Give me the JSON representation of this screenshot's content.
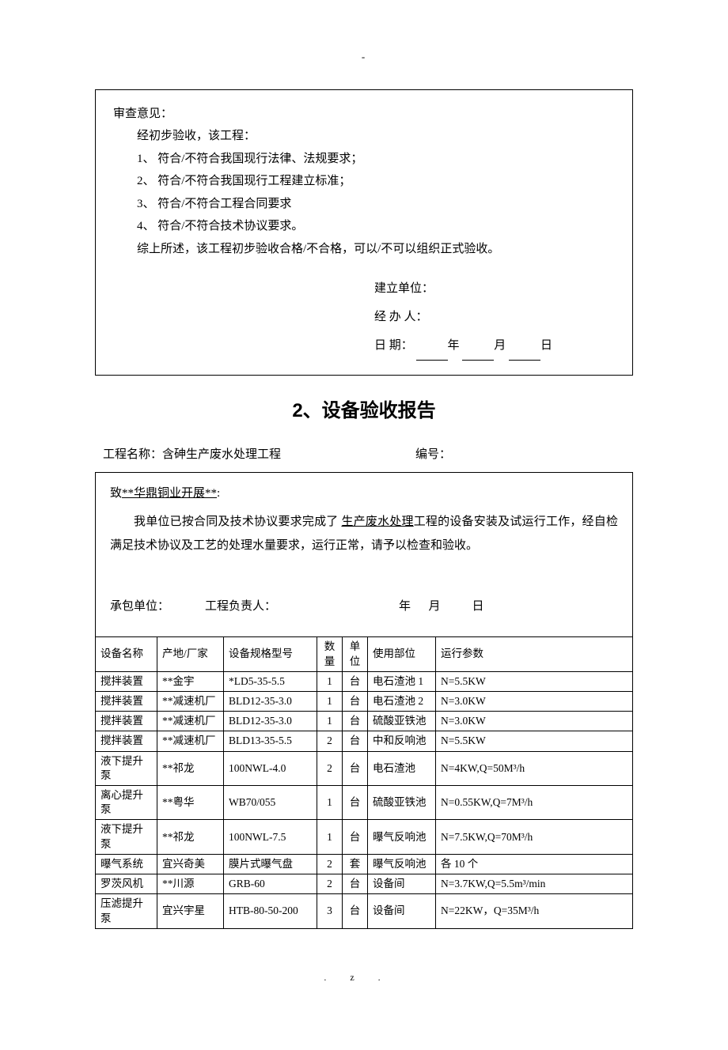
{
  "topDash": "-",
  "reviewBox": {
    "title": "审查意见：",
    "intro": "经初步验收，该工程：",
    "items": [
      "1、 符合/不符合我国现行法律、法规要求；",
      "2、 符合/不符合我国现行工程建立标准；",
      "3、 符合/不符合工程合同要求",
      "4、 符合/不符合技术协议要求。"
    ],
    "summary": "综上所述，该工程初步验收合格/不合格，可以/不可以组织正式验收。",
    "sign": {
      "unitLabel": "建立单位：",
      "handlerLabel": "经  办  人：",
      "dateLabel": "日          期：",
      "year": "年",
      "month": "月",
      "day": "日"
    }
  },
  "sectionHeading": "2、设备验收报告",
  "meta": {
    "projectLabel": "工程名称：",
    "projectName": "含砷生产废水处理工程",
    "codeLabel": "编号："
  },
  "letter": {
    "toPrefix": "致",
    "toName": "**华鼎铜业开展**",
    "toSuffix": ":",
    "bodyPart1": "我单位已按合同及技术协议要求完成了 ",
    "bodyUnderlined": "生产废水处理",
    "bodyPart2": "工程的设备安装及试运行工作，经自检满足技术协议及工艺的处理水量要求，运行正常，请予以检查和验收。",
    "signer": {
      "contractor": "承包单位：",
      "leader": "工程负责人：",
      "year": "年",
      "month": "月",
      "day": "日"
    }
  },
  "table": {
    "headers": {
      "name": "设备名称",
      "mfr": "产地/厂家",
      "model": "设备规格型号",
      "qty": "数量",
      "unit": "单位",
      "loc": "使用部位",
      "param": "运行参数"
    },
    "rows": [
      {
        "name": "搅拌装置",
        "mfr": "**金宇",
        "model": "*LD5-35-5.5",
        "qty": "1",
        "unit": "台",
        "loc": "电石渣池 1",
        "param": "N=5.5KW"
      },
      {
        "name": "搅拌装置",
        "mfr": "**减速机厂",
        "model": "BLD12-35-3.0",
        "qty": "1",
        "unit": "台",
        "loc": "电石渣池 2",
        "param": "N=3.0KW"
      },
      {
        "name": "搅拌装置",
        "mfr": "**减速机厂",
        "model": "BLD12-35-3.0",
        "qty": "1",
        "unit": "台",
        "loc": "硫酸亚铁池",
        "param": "N=3.0KW"
      },
      {
        "name": "搅拌装置",
        "mfr": "**减速机厂",
        "model": "BLD13-35-5.5",
        "qty": "2",
        "unit": "台",
        "loc": "中和反响池",
        "param": "N=5.5KW"
      },
      {
        "name": "液下提升泵",
        "mfr": "**祁龙",
        "model": "100NWL-4.0",
        "qty": "2",
        "unit": "台",
        "loc": "电石渣池",
        "param": "N=4KW,Q=50M³/h"
      },
      {
        "name": "离心提升泵",
        "mfr": "**粤华",
        "model": "WB70/055",
        "qty": "1",
        "unit": "台",
        "loc": "硫酸亚铁池",
        "param": "N=0.55KW,Q=7M³/h"
      },
      {
        "name": "液下提升泵",
        "mfr": "**祁龙",
        "model": "100NWL-7.5",
        "qty": "1",
        "unit": "台",
        "loc": "曝气反响池",
        "param": "N=7.5KW,Q=70M³/h"
      },
      {
        "name": "曝气系统",
        "mfr": "宜兴奇美",
        "model": "膜片式曝气盘",
        "qty": "2",
        "unit": "套",
        "loc": "曝气反响池",
        "param": "各 10 个"
      },
      {
        "name": "罗茨风机",
        "mfr": "**川源",
        "model": "GRB-60",
        "qty": "2",
        "unit": "台",
        "loc": "设备间",
        "param": "N=3.7KW,Q=5.5m³/min"
      },
      {
        "name": "压滤提升泵",
        "mfr": "宜兴宇星",
        "model": "HTB-80-50-200",
        "qty": "3",
        "unit": "台",
        "loc": "设备间",
        "param": "N=22KW，Q=35M³/h"
      }
    ]
  },
  "footer": {
    "dot": ".",
    "z": "z."
  }
}
